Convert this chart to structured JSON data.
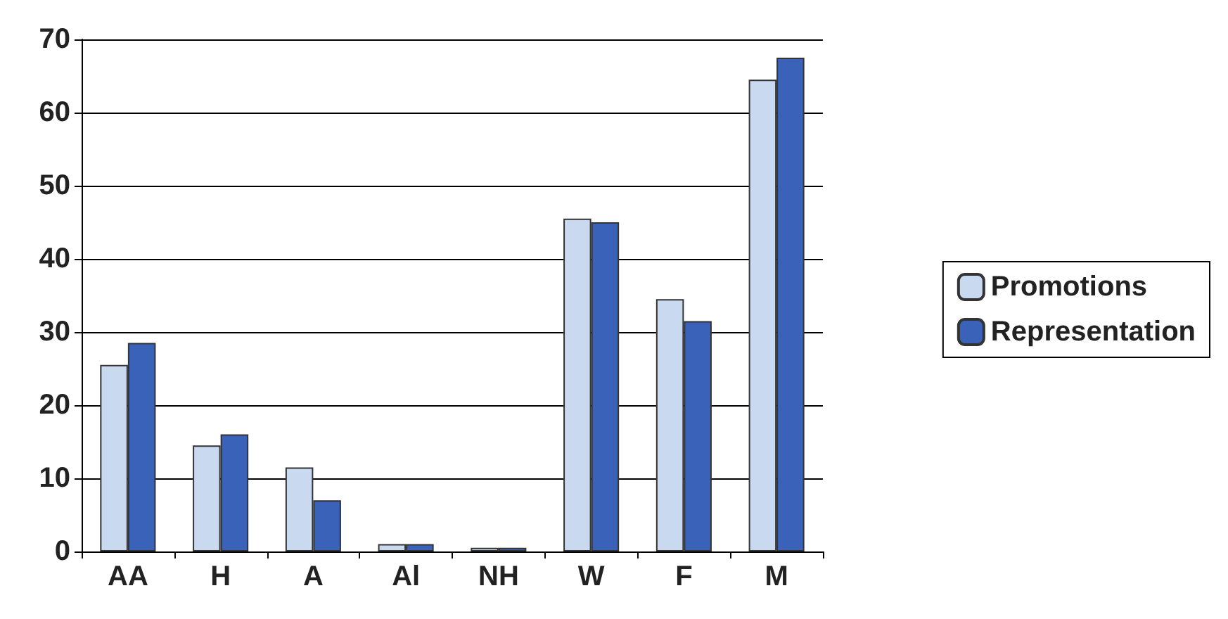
{
  "chart_data": {
    "type": "bar",
    "categories": [
      "AA",
      "H",
      "A",
      "Al",
      "NH",
      "W",
      "F",
      "M"
    ],
    "series": [
      {
        "name": "Promotions",
        "color": "#c9daf0",
        "values": [
          25.5,
          14.5,
          11.5,
          1,
          0.5,
          45.5,
          34.5,
          64.5
        ]
      },
      {
        "name": "Representation",
        "color": "#3a62b8",
        "values": [
          28.5,
          16,
          7,
          1,
          0.5,
          45,
          31.5,
          67.5
        ]
      }
    ],
    "ylim": [
      0,
      70
    ],
    "yticks": [
      0,
      10,
      20,
      30,
      40,
      50,
      60,
      70
    ],
    "grid": "y",
    "legend": "right"
  }
}
